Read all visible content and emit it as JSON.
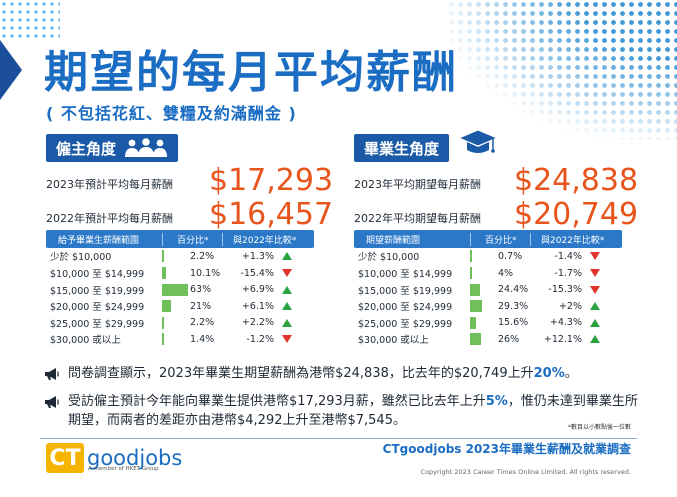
{
  "header": {
    "title": "期望的每月平均薪酬",
    "subtitle": "( 不包括花紅、雙糧及約滿酬金 )"
  },
  "employer": {
    "badge_label": "僱主角度",
    "icon": "people-group-icon",
    "stat_2023_label": "2023年預計平均每月薪酬",
    "stat_2023_value": "$17,293",
    "stat_2022_label": "2022年預計平均每月薪酬",
    "stat_2022_value": "$16,457",
    "table": {
      "col_range": "給予畢業生薪酬範圍",
      "col_pct": "百分比*",
      "col_cmp": "與2022年比較*",
      "rows": [
        {
          "range": "少於 $10,000",
          "pct_value": 2.2,
          "pct": "2.2%",
          "cmp": "+1.3%",
          "dir": "up"
        },
        {
          "range": "$10,000 至 $14,999",
          "pct_value": 10.1,
          "pct": "10.1%",
          "cmp": "-15.4%",
          "dir": "down"
        },
        {
          "range": "$15,000 至 $19,999",
          "pct_value": 63,
          "pct": "63%",
          "cmp": "+6.9%",
          "dir": "up"
        },
        {
          "range": "$20,000 至 $24,999",
          "pct_value": 21,
          "pct": "21%",
          "cmp": "+6.1%",
          "dir": "up"
        },
        {
          "range": "$25,000 至 $29,999",
          "pct_value": 2.2,
          "pct": "2.2%",
          "cmp": "+2.2%",
          "dir": "up"
        },
        {
          "range": "$30,000 或以上",
          "pct_value": 1.4,
          "pct": "1.4%",
          "cmp": "-1.2%",
          "dir": "down"
        }
      ]
    }
  },
  "graduate": {
    "badge_label": "畢業生角度",
    "icon": "graduation-cap-icon",
    "stat_2023_label": "2023年平均期望每月薪酬",
    "stat_2023_value": "$24,838",
    "stat_2022_label": "2022年平均期望每月薪酬",
    "stat_2022_value": "$20,749",
    "table": {
      "col_range": "期望薪酬範圍",
      "col_pct": "百分比*",
      "col_cmp": "與2022年比較*",
      "rows": [
        {
          "range": "少於 $10,000",
          "pct_value": 0.7,
          "pct": "0.7%",
          "cmp": "-1.4%",
          "dir": "down"
        },
        {
          "range": "$10,000 至 $14,999",
          "pct_value": 4,
          "pct": "4%",
          "cmp": "-1.7%",
          "dir": "down"
        },
        {
          "range": "$15,000 至 $19,999",
          "pct_value": 24.4,
          "pct": "24.4%",
          "cmp": "-15.3%",
          "dir": "down"
        },
        {
          "range": "$20,000 至 $24,999",
          "pct_value": 29.3,
          "pct": "29.3%",
          "cmp": "+2%",
          "dir": "up"
        },
        {
          "range": "$25,000 至 $29,999",
          "pct_value": 15.6,
          "pct": "15.6%",
          "cmp": "+4.3%",
          "dir": "up"
        },
        {
          "range": "$30,000 或以上",
          "pct_value": 26,
          "pct": "26%",
          "cmp": "+12.1%",
          "dir": "up"
        }
      ]
    }
  },
  "notes": {
    "icon": "megaphone-icon",
    "note1_pre": "問卷調查顯示，2023年畢業生期望薪酬為港幣$24,838，比去年的$20,749上升",
    "note1_hl": "20%",
    "note1_post": "。",
    "note2_pre": "受訪僱主預計今年能向畢業生提供港幣$17,293月薪，雖然已比去年上升",
    "note2_hl": "5%",
    "note2_post": "，惟仍未達到畢業生所期望，而兩者的差距亦由港幣$4,292上升至港幣$7,545。",
    "footnote": "*數目以小數點後一位數"
  },
  "footer": {
    "logo_ct": "CT",
    "logo_word": "goodjobs",
    "logo_tag": "A member of HKET Group",
    "report_title": "CTgoodjobs 2023年畢業生薪酬及就業調查",
    "copyright": "Copyright 2023 Career Times Online Limited. All rights reserved."
  },
  "colors": {
    "title_blue": "#1a6dc2",
    "badge_blue": "#1b5aa6",
    "table_header": "#2b78c9",
    "value_orange": "#e8541c",
    "bar_green": "#6fbf5a",
    "up_green": "#2aa33f",
    "down_red": "#e0332b"
  }
}
